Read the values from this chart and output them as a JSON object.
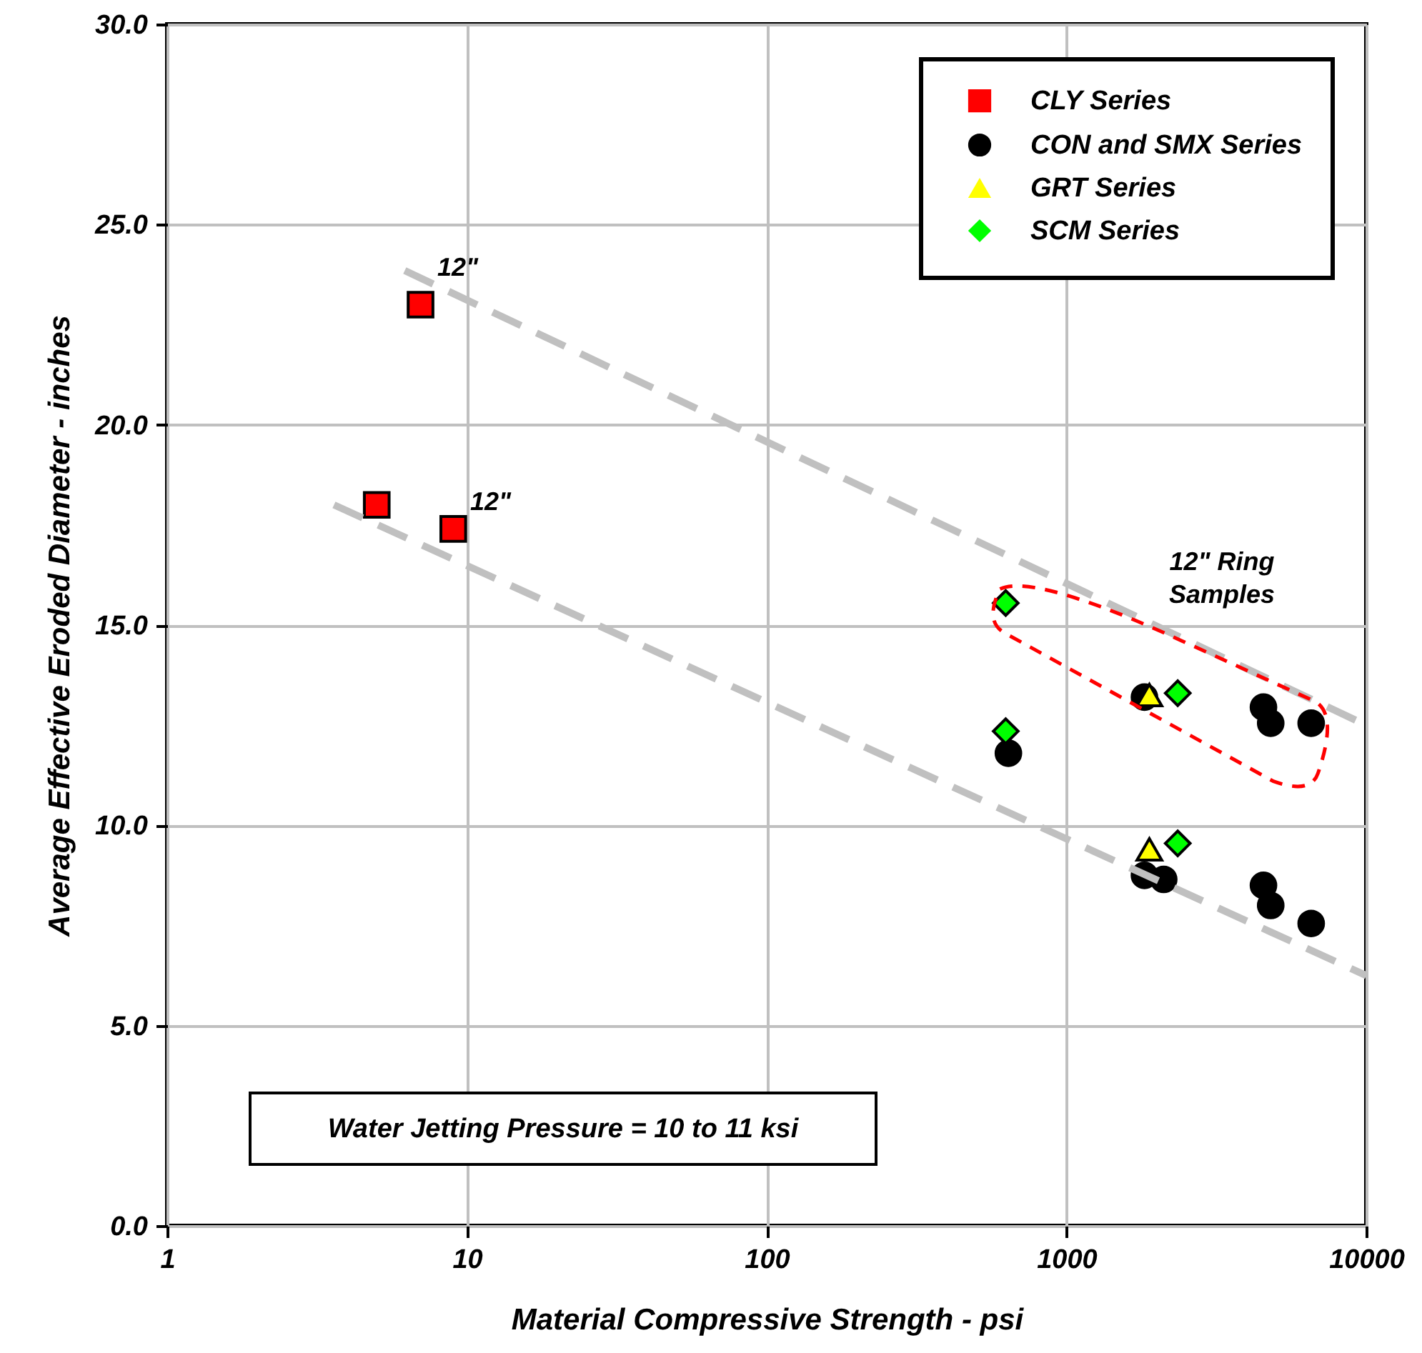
{
  "chart_data": {
    "type": "scatter",
    "xlabel": "Material Compressive Strength - psi",
    "ylabel": "Average Effective Eroded Diameter - inches",
    "log": "x",
    "grid": true,
    "legend": "top right",
    "xlim": [
      1,
      10000
    ],
    "xticks": [
      1,
      10,
      100,
      1000,
      10000
    ],
    "ylim": [
      0,
      30
    ],
    "yticks": [
      {
        "value": 0,
        "label": "0.0"
      },
      {
        "value": 5,
        "label": "5.0"
      },
      {
        "value": 10,
        "label": "10.0"
      },
      {
        "value": 15,
        "label": "15.0"
      },
      {
        "value": 20,
        "label": "20.0"
      },
      {
        "value": 25,
        "label": "25.0"
      },
      {
        "value": 30,
        "label": "30.0"
      }
    ],
    "series": [
      {
        "name": "CLY Series",
        "color": "#ff0000",
        "marker": "square",
        "x": [
          7,
          5,
          9
        ],
        "values": [
          23.0,
          18.0,
          17.4
        ]
      },
      {
        "name": "CON and SMX Series",
        "color": "#000000",
        "marker": "circle",
        "x": [
          640,
          1820,
          4540,
          4800,
          6550,
          1820,
          2110,
          4540,
          4800,
          6550
        ],
        "values": [
          11.8,
          13.2,
          12.95,
          12.55,
          12.55,
          8.75,
          8.65,
          8.5,
          8.0,
          7.55
        ]
      },
      {
        "name": "GRT Series",
        "color": "#ffff00",
        "marker": "triangle",
        "x": [
          1890,
          1890
        ],
        "values": [
          13.25,
          9.4
        ]
      },
      {
        "name": "SCM Series",
        "color": "#00ff00",
        "marker": "diamond",
        "x": [
          627,
          627,
          2350,
          2350
        ],
        "values": [
          15.55,
          12.35,
          13.3,
          9.55
        ]
      },
      {
        "type": "line",
        "color": "#c0c0c0",
        "line_style": "dashed",
        "x": [
          6.2,
          10000
        ],
        "values": [
          23.85,
          12.5
        ]
      },
      {
        "type": "line",
        "color": "#c0c0c0",
        "line_style": "dashed",
        "x": [
          3.6,
          10000
        ],
        "values": [
          18.0,
          6.25
        ]
      }
    ],
    "annotations": [
      "12\"",
      "12\"",
      "12\" Ring Samples",
      "Water Jetting Pressure = 10 to 11 ksi"
    ]
  }
}
